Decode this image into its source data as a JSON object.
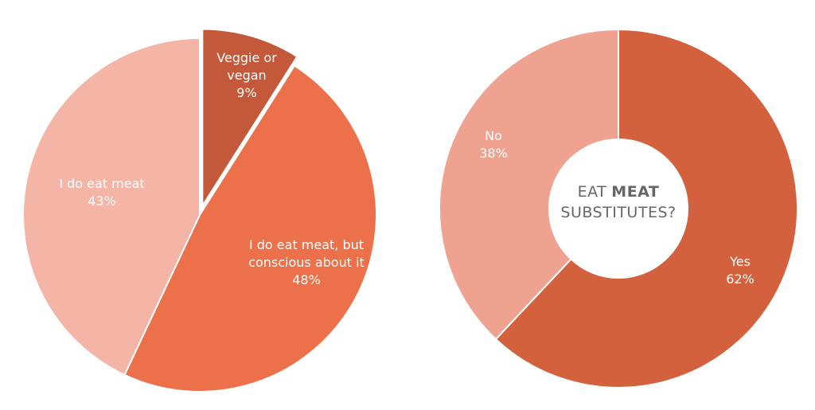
{
  "chart_data": [
    {
      "type": "pie",
      "categories": [
        "Veggie or vegan",
        "I do eat meat, but conscious about it",
        "I do eat meat"
      ],
      "values": [
        9,
        48,
        43
      ],
      "value_labels": [
        "9%",
        "48%",
        "43%"
      ],
      "colors": [
        "#c4583a",
        "#ec7049",
        "#f4b5a7"
      ],
      "explode": [
        true,
        false,
        false
      ]
    },
    {
      "type": "donut",
      "title_parts": [
        {
          "text": "EAT"
        },
        {
          "text": "MEAT",
          "bold": true
        },
        {
          "text": "SUBSTITUTES?"
        }
      ],
      "categories": [
        "Yes",
        "No"
      ],
      "values": [
        62,
        38
      ],
      "value_labels": [
        "62%",
        "38%"
      ],
      "colors": [
        "#d4613d",
        "#f0a291"
      ]
    }
  ]
}
